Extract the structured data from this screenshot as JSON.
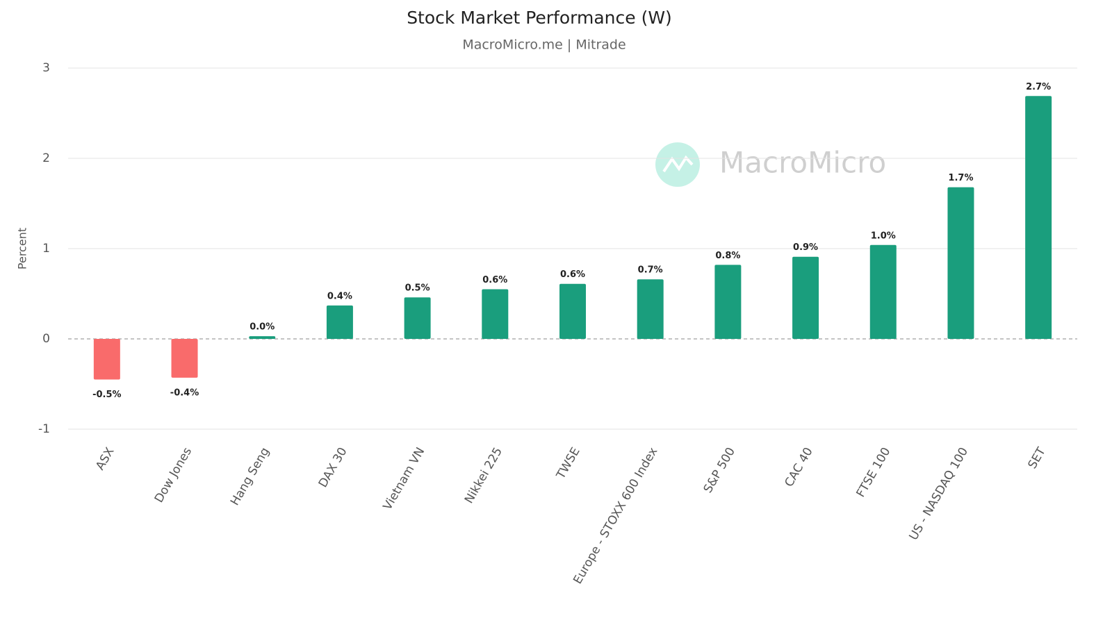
{
  "chart_data": {
    "type": "bar",
    "title": "Stock Market Performance (W)",
    "subtitle": "MacroMicro.me | Mitrade",
    "watermark": "MacroMicro",
    "y_label": "Percent",
    "categories": [
      "ASX",
      "Dow Jones",
      "Hang Seng",
      "DAX 30",
      "Vietnam VN",
      "Nikkei 225",
      "TWSE",
      "Europe - STOXX 600 Index",
      "S&P 500",
      "CAC 40",
      "FTSE 100",
      "US - NASDAQ 100",
      "SET"
    ],
    "values": [
      -0.45,
      -0.43,
      0.03,
      0.37,
      0.46,
      0.55,
      0.61,
      0.66,
      0.82,
      0.91,
      1.04,
      1.68,
      2.69
    ],
    "value_labels": [
      "-0.5%",
      "-0.4%",
      "0.0%",
      "0.4%",
      "0.5%",
      "0.6%",
      "0.6%",
      "0.7%",
      "0.8%",
      "0.9%",
      "1.0%",
      "1.7%",
      "2.7%"
    ],
    "positive_color": "#1a9e7d",
    "negative_color": "#f96b6b",
    "ylim": [
      -1,
      3
    ],
    "yticks": [
      -1,
      0,
      1,
      2,
      3
    ],
    "grid": true
  }
}
